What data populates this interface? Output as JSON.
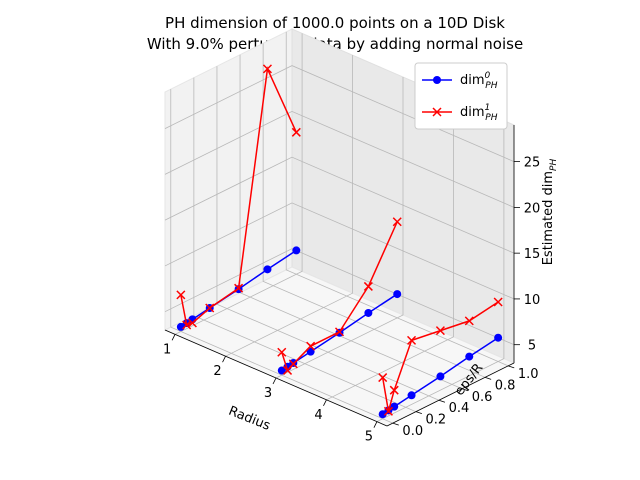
{
  "chart_data": {
    "type": "line3d",
    "title": [
      "PH dimension of 1000.0 points on a 10D Disk",
      "With 9.0% perturbed data by adding normal noise"
    ],
    "xlabel": "Radius",
    "ylabel": "eps/R",
    "zlabel": "Estimated dim_PH",
    "xticks": [
      "1",
      "2",
      "3",
      "4",
      "5"
    ],
    "yticks": [
      "0.0",
      "0.2",
      "0.4",
      "0.6",
      "0.8",
      "1.0"
    ],
    "zticks": [
      "5",
      "10",
      "15",
      "20",
      "25"
    ],
    "xlim": [
      0.8,
      5.2
    ],
    "ylim": [
      -0.05,
      1.05
    ],
    "zlim": [
      3,
      29
    ],
    "legend": {
      "position": "top-right",
      "entries": [
        {
          "base": "dim",
          "sup": "0",
          "sub": "PH"
        },
        {
          "base": "dim",
          "sup": "1",
          "sub": "PH"
        }
      ]
    },
    "eps": [
      0.0,
      0.05,
      0.1,
      0.25,
      0.5,
      0.75,
      1.0
    ],
    "series": [
      {
        "name": "dim0_PH",
        "color": "#0000ff",
        "marker": "circle",
        "lines": [
          {
            "radius": 1,
            "values": [
              3.5,
              3.6,
              3.7,
              4.0,
              4.5,
              5.1,
              5.6
            ]
          },
          {
            "radius": 3,
            "values": [
              3.5,
              3.6,
              3.7,
              4.0,
              4.5,
              5.1,
              5.6
            ]
          },
          {
            "radius": 5,
            "values": [
              3.5,
              3.6,
              3.7,
              4.0,
              4.5,
              5.1,
              5.6
            ]
          }
        ]
      },
      {
        "name": "dim1_PH",
        "color": "#ff0000",
        "marker": "x",
        "lines": [
          {
            "radius": 1,
            "values": [
              7.0,
              3.4,
              3.3,
              4.0,
              4.6,
              27.0,
              18.5
            ]
          },
          {
            "radius": 3,
            "values": [
              5.5,
              3.2,
              3.6,
              4.6,
              4.6,
              8.0,
              13.5
            ]
          },
          {
            "radius": 5,
            "values": [
              7.5,
              3.5,
              5.5,
              10.0,
              9.5,
              9.0,
              9.5
            ]
          }
        ]
      }
    ]
  }
}
